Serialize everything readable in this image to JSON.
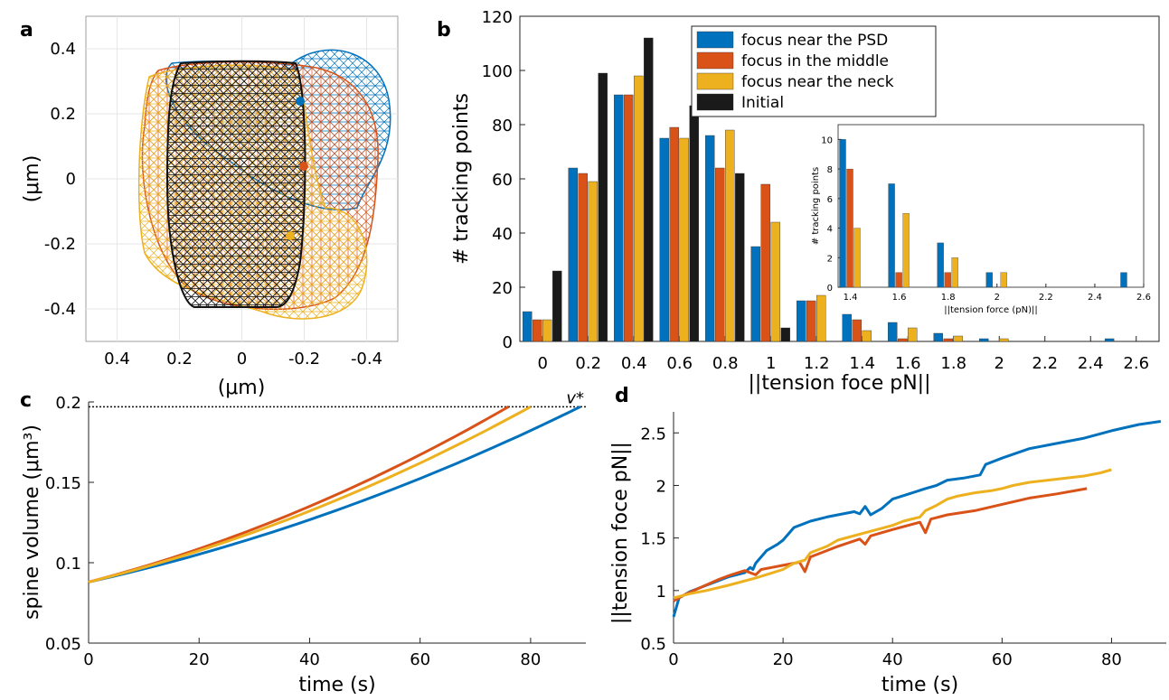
{
  "colors": {
    "blue": "#0072BD",
    "orange": "#D95319",
    "yellow": "#EDB120",
    "black": "#1a1a1a"
  },
  "panels": {
    "a": {
      "label": "a",
      "xlabel": "(μm)",
      "ylabel": "(μm)",
      "x_ticks": [
        "0.4",
        "0.2",
        "0",
        "-0.2",
        "-0.4"
      ],
      "y_ticks": [
        "0.4",
        "0.2",
        "0",
        "-0.2",
        "-0.4"
      ]
    },
    "b": {
      "label": "b"
    },
    "c": {
      "label": "c"
    },
    "d": {
      "label": "d"
    }
  },
  "chart_data": [
    {
      "panel": "a",
      "type": "other",
      "description_kind": "3D mesh surfaces of spine shapes",
      "xlim": [
        0.5,
        -0.5
      ],
      "ylim": [
        -0.5,
        0.5
      ],
      "grid": true,
      "focus_points": [
        {
          "series": "focus near the PSD",
          "x": -0.2,
          "y": 0.24,
          "color": "blue"
        },
        {
          "series": "focus in the middle",
          "x": -0.22,
          "y": 0.04,
          "color": "orange"
        },
        {
          "series": "focus near the neck",
          "x": -0.17,
          "y": -0.17,
          "color": "yellow"
        }
      ]
    },
    {
      "panel": "b",
      "type": "bar",
      "xlabel": "||tension foce pN||",
      "ylabel": "# tracking points",
      "ylim": [
        0,
        120
      ],
      "y_ticks": [
        0,
        20,
        40,
        60,
        80,
        100,
        120
      ],
      "x_ticks": [
        "0",
        "0.2",
        "0.4",
        "0.6",
        "0.8",
        "1",
        "1.2",
        "1.4",
        "1.6",
        "1.8",
        "2",
        "2.2",
        "2.4",
        "2.6"
      ],
      "categories": [
        0,
        0.2,
        0.4,
        0.6,
        0.8,
        1.0,
        1.2,
        1.4,
        1.6,
        1.8,
        2.0,
        2.2,
        2.4,
        2.55
      ],
      "legend_position": "top-center",
      "series": [
        {
          "name": "focus near the PSD",
          "color": "blue",
          "values": [
            11,
            64,
            91,
            75,
            76,
            35,
            15,
            10,
            7,
            3,
            1,
            0,
            0,
            1
          ]
        },
        {
          "name": "focus in the middle",
          "color": "orange",
          "values": [
            8,
            62,
            91,
            79,
            64,
            58,
            15,
            8,
            1,
            1,
            0,
            0,
            0,
            0
          ]
        },
        {
          "name": "focus near the neck",
          "color": "yellow",
          "values": [
            8,
            59,
            98,
            75,
            78,
            44,
            17,
            4,
            5,
            2,
            1,
            0,
            0,
            0
          ]
        },
        {
          "name": "Initial",
          "color": "black",
          "values": [
            26,
            99,
            112,
            87,
            62,
            5,
            0,
            0,
            0,
            0,
            0,
            0,
            0,
            0
          ]
        }
      ],
      "inset": {
        "type": "bar",
        "xlabel": "||tension force (pN)||",
        "ylabel": "# tracking points",
        "xlim": [
          1.35,
          2.6
        ],
        "ylim": [
          0,
          11
        ],
        "x_ticks": [
          "1.4",
          "1.6",
          "1.8",
          "2",
          "2.2",
          "2.4",
          "2.6"
        ],
        "y_ticks": [
          "0",
          "2",
          "4",
          "6",
          "8",
          "10"
        ],
        "categories": [
          1.4,
          1.6,
          1.8,
          2.0,
          2.55
        ],
        "series": [
          {
            "name": "focus near the PSD",
            "color": "blue",
            "values": [
              10,
              7,
              3,
              1,
              1
            ]
          },
          {
            "name": "focus in the middle",
            "color": "orange",
            "values": [
              8,
              1,
              1,
              0,
              0
            ]
          },
          {
            "name": "focus near the neck",
            "color": "yellow",
            "values": [
              4,
              5,
              2,
              1,
              0
            ]
          }
        ]
      }
    },
    {
      "panel": "c",
      "type": "line",
      "xlabel": "time (s)",
      "ylabel": "spine volume (μm³)",
      "xlim": [
        0,
        90
      ],
      "ylim": [
        0.05,
        0.2
      ],
      "x_ticks": [
        "0",
        "20",
        "40",
        "60",
        "80"
      ],
      "y_ticks": [
        "0.05",
        "0.1",
        "0.15",
        "0.2"
      ],
      "reference_line": {
        "label": "v*",
        "y": 0.197
      },
      "series": [
        {
          "color": "blue",
          "end_time": 89
        },
        {
          "color": "orange",
          "end_time": 76
        },
        {
          "color": "yellow",
          "end_time": 80
        }
      ],
      "start_value": 0.088,
      "end_value": 0.197
    },
    {
      "panel": "d",
      "type": "line",
      "xlabel": "time (s)",
      "ylabel": "||tension foce pN||",
      "xlim": [
        0,
        90
      ],
      "ylim": [
        0.5,
        2.7
      ],
      "x_ticks": [
        "0",
        "20",
        "40",
        "60",
        "80"
      ],
      "y_ticks": [
        "0.5",
        "1",
        "1.5",
        "2",
        "2.5"
      ],
      "series": [
        {
          "color": "blue",
          "x": [
            0,
            1,
            3,
            6,
            10,
            13,
            14,
            14.5,
            15,
            17,
            18,
            19,
            20,
            22,
            25,
            28,
            30,
            33,
            34,
            35,
            36,
            38,
            40,
            43,
            46,
            48,
            50,
            53,
            56,
            57,
            60,
            65,
            70,
            75,
            80,
            85,
            89
          ],
          "y": [
            0.75,
            0.93,
            0.99,
            1.05,
            1.13,
            1.17,
            1.22,
            1.2,
            1.26,
            1.38,
            1.41,
            1.44,
            1.48,
            1.6,
            1.66,
            1.7,
            1.72,
            1.75,
            1.73,
            1.8,
            1.72,
            1.78,
            1.87,
            1.92,
            1.97,
            2.0,
            2.05,
            2.07,
            2.1,
            2.2,
            2.26,
            2.35,
            2.4,
            2.45,
            2.52,
            2.58,
            2.61
          ]
        },
        {
          "color": "orange",
          "x": [
            0,
            2,
            5,
            8,
            10,
            13,
            15,
            16,
            18,
            20,
            23,
            24,
            25,
            28,
            30,
            34,
            35,
            36,
            38,
            40,
            45,
            46,
            47,
            50,
            55,
            60,
            65,
            70,
            75.5
          ],
          "y": [
            0.9,
            0.96,
            1.03,
            1.1,
            1.14,
            1.19,
            1.15,
            1.2,
            1.22,
            1.24,
            1.27,
            1.18,
            1.32,
            1.38,
            1.42,
            1.49,
            1.44,
            1.52,
            1.55,
            1.58,
            1.65,
            1.55,
            1.68,
            1.72,
            1.76,
            1.82,
            1.88,
            1.92,
            1.97
          ]
        },
        {
          "color": "yellow",
          "x": [
            0,
            3,
            6,
            10,
            15,
            20,
            22,
            24,
            25,
            28,
            30,
            35,
            40,
            42,
            45,
            46,
            48,
            50,
            52,
            55,
            58,
            60,
            62,
            65,
            70,
            75,
            78,
            80
          ],
          "y": [
            0.93,
            0.97,
            1.0,
            1.05,
            1.12,
            1.2,
            1.26,
            1.29,
            1.36,
            1.42,
            1.48,
            1.55,
            1.62,
            1.66,
            1.7,
            1.76,
            1.81,
            1.87,
            1.9,
            1.93,
            1.95,
            1.97,
            2.0,
            2.03,
            2.06,
            2.09,
            2.12,
            2.15
          ]
        }
      ]
    }
  ]
}
